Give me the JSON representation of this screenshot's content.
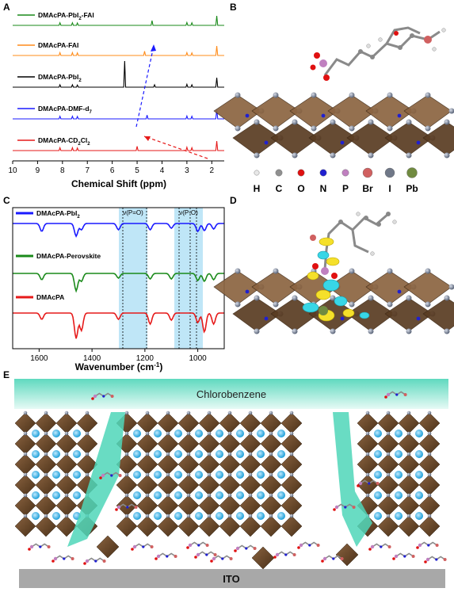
{
  "panels": {
    "a": {
      "label": "A"
    },
    "b": {
      "label": "B"
    },
    "c": {
      "label": "C"
    },
    "d": {
      "label": "D"
    },
    "e": {
      "label": "E"
    }
  },
  "colors": {
    "green": "#1a8a1a",
    "orange": "#ff8c1a",
    "black": "#000000",
    "blue": "#1a1aff",
    "red": "#e61a1a",
    "highlight": "#bfe6f7",
    "octahedron": "#6b4a2c",
    "cation": "#2aa7dd",
    "solvent": "#4fd6b9"
  },
  "chart_a": {
    "type": "line",
    "xlabel": "Chemical Shift (ppm)",
    "xlim": [
      10,
      1.5
    ],
    "xticks": [
      "10",
      "9",
      "8",
      "7",
      "6",
      "5",
      "4",
      "3",
      "2"
    ],
    "series": [
      {
        "name_pre": "DMAcPA-PbI",
        "sub": "2",
        "name_post": "-FAI",
        "color": "green",
        "peaks": [
          [
            8.1,
            0.55
          ],
          [
            7.6,
            0.55
          ],
          [
            7.4,
            0.5
          ],
          [
            4.4,
            1.0
          ],
          [
            3.0,
            0.6
          ],
          [
            2.8,
            0.55
          ],
          [
            1.8,
            2.0
          ]
        ]
      },
      {
        "name_pre": "DMAcPA-FAI",
        "sub": "",
        "name_post": "",
        "color": "orange",
        "peaks": [
          [
            8.1,
            0.6
          ],
          [
            7.6,
            0.6
          ],
          [
            7.4,
            0.55
          ],
          [
            4.7,
            0.9
          ],
          [
            3.0,
            0.6
          ],
          [
            2.8,
            0.55
          ],
          [
            1.8,
            2.0
          ]
        ]
      },
      {
        "name_pre": "DMAcPA-PbI",
        "sub": "2",
        "name_post": "",
        "color": "black",
        "peaks": [
          [
            8.1,
            0.5
          ],
          [
            7.6,
            0.5
          ],
          [
            7.4,
            0.45
          ],
          [
            5.5,
            5.5
          ],
          [
            4.3,
            0.5
          ],
          [
            3.0,
            0.6
          ],
          [
            2.8,
            0.5
          ],
          [
            1.8,
            2.0
          ]
        ]
      },
      {
        "name_pre": "DMAcPA-DMF-d",
        "sub": "7",
        "name_post": "",
        "color": "blue",
        "peaks": [
          [
            8.1,
            0.55
          ],
          [
            7.6,
            0.55
          ],
          [
            7.4,
            0.5
          ],
          [
            4.6,
            0.8
          ],
          [
            3.0,
            0.6
          ],
          [
            2.8,
            0.55
          ],
          [
            1.8,
            2.0
          ]
        ]
      },
      {
        "name_pre": "DMAcPA-CD",
        "sub": "2",
        "name_post": "Cl",
        "sub2": "2",
        "color": "red",
        "peaks": [
          [
            8.1,
            0.6
          ],
          [
            7.6,
            0.6
          ],
          [
            7.4,
            0.55
          ],
          [
            5.0,
            0.9
          ],
          [
            3.0,
            0.7
          ],
          [
            2.8,
            0.6
          ],
          [
            1.8,
            2.0
          ]
        ]
      }
    ]
  },
  "legend_b": {
    "items": [
      {
        "symbol": "H",
        "color": "#e8e8e8"
      },
      {
        "symbol": "C",
        "color": "#909090"
      },
      {
        "symbol": "O",
        "color": "#e01010"
      },
      {
        "symbol": "N",
        "color": "#2020d0"
      },
      {
        "symbol": "P",
        "color": "#c080c0"
      },
      {
        "symbol": "Br",
        "color": "#d06060"
      },
      {
        "symbol": "I",
        "color": "#707888"
      },
      {
        "symbol": "Pb",
        "color": "#708a40"
      }
    ]
  },
  "chart_c": {
    "type": "line",
    "xlabel": "Wavenumber (cm",
    "xlabel_sup": "-1",
    "xlabel_end": ")",
    "xlim": [
      1700,
      900
    ],
    "xticks": [
      "1600",
      "1400",
      "1200",
      "1000"
    ],
    "annotations": [
      "ν(P=O)",
      "ν(P-O)"
    ],
    "series": [
      {
        "name_pre": "DMAcPA-PbI",
        "sub": "2",
        "color": "blue"
      },
      {
        "name_pre": "DMAcPA-Perovskite",
        "sub": "",
        "color": "green"
      },
      {
        "name_pre": "DMAcPA",
        "sub": "",
        "color": "red"
      }
    ]
  },
  "panel_e": {
    "top_label": "Chlorobenzene",
    "bottom_label": "ITO"
  }
}
